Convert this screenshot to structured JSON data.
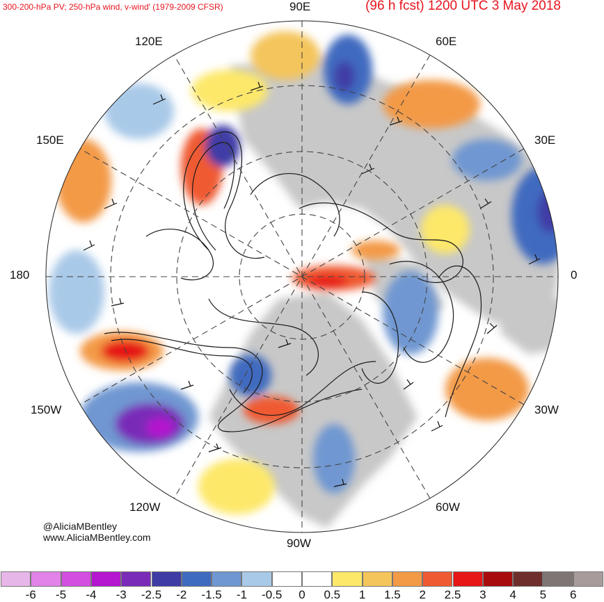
{
  "header": {
    "left_title": "300-200-hPa PV; 250-hPa wind, v-wind' (1979-2009 CFSR)",
    "right_title": "(96 h fcst) 1200 UTC 3 May 2018"
  },
  "longitude_labels": {
    "e90": "90E",
    "e60": "60E",
    "e30": "30E",
    "zero": "0",
    "w30": "30W",
    "w60": "60W",
    "w90": "90W",
    "w120": "120W",
    "w150": "150W",
    "l180": "180",
    "e150": "150E",
    "e120": "120E"
  },
  "credits": {
    "handle": "@AliciaMBentley",
    "website": "www.AliciaMBentley.com"
  },
  "colorbar": {
    "colors": [
      "#e7b6e8",
      "#e183e8",
      "#d24fe0",
      "#b417cf",
      "#7a2bb8",
      "#3f3ca6",
      "#3f6bbf",
      "#6f97d1",
      "#a9c9e8",
      "#ffffff",
      "#ffffff",
      "#fde86a",
      "#f4c55b",
      "#f39a47",
      "#ef5a32",
      "#e61717",
      "#a80c0c",
      "#6e2e2c",
      "#7f7574",
      "#a79b9b"
    ],
    "ticks": [
      "-6",
      "-5",
      "-4",
      "-3",
      "-2.5",
      "-2",
      "-1.5",
      "-1",
      "-0.5",
      "0",
      "0.5",
      "1",
      "1.5",
      "2",
      "2.5",
      "3",
      "4",
      "5",
      "6"
    ]
  }
}
